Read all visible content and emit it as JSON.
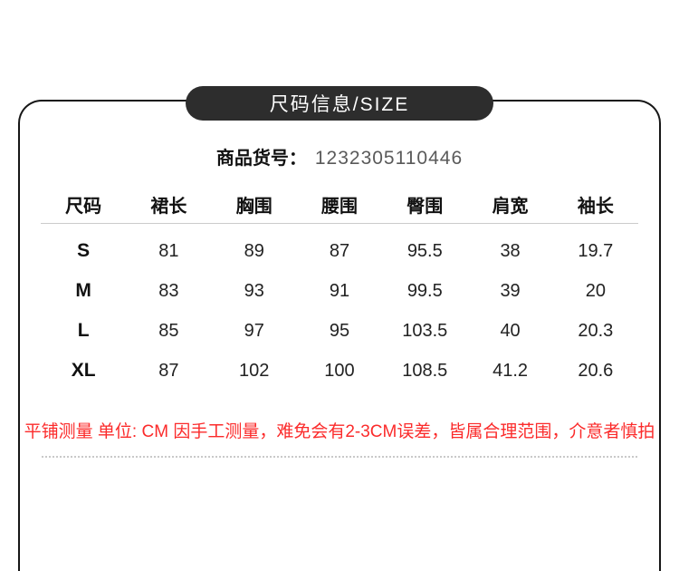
{
  "banner": {
    "title": "尺码信息/SIZE"
  },
  "product": {
    "label": "商品货号：",
    "value": "1232305110446"
  },
  "size_table": {
    "columns": [
      "尺码",
      "裙长",
      "胸围",
      "腰围",
      "臀围",
      "肩宽",
      "袖长"
    ],
    "rows": [
      [
        "S",
        "81",
        "89",
        "87",
        "95.5",
        "38",
        "19.7"
      ],
      [
        "M",
        "83",
        "93",
        "91",
        "99.5",
        "39",
        "20"
      ],
      [
        "L",
        "85",
        "97",
        "95",
        "103.5",
        "40",
        "20.3"
      ],
      [
        "XL",
        "87",
        "102",
        "100",
        "108.5",
        "41.2",
        "20.6"
      ]
    ]
  },
  "note": {
    "text": "平铺测量 单位: CM 因手工测量，难免会有2-3CM误差，皆属合理范围，介意者慎拍"
  },
  "colors": {
    "banner_bg": "#2d2d2d",
    "frame_border": "#161616",
    "product_value": "#5a5a5a",
    "header_separator": "#cccccc",
    "note_red": "#fb2b2b",
    "dotted_line": "#c9c9c9"
  }
}
